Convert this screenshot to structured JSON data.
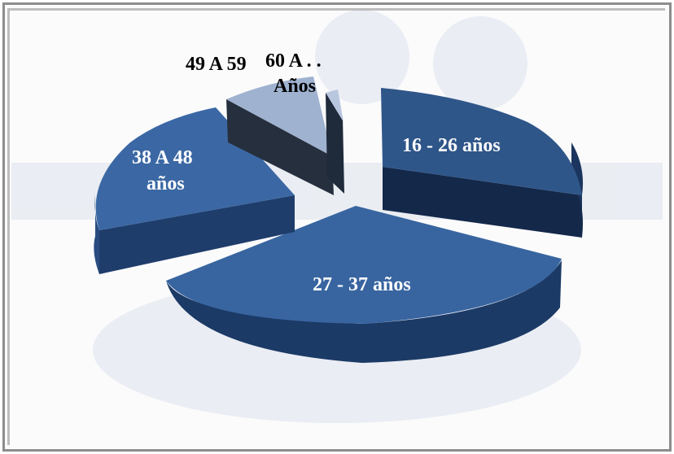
{
  "chart_data": {
    "type": "pie",
    "title": "",
    "slices": [
      {
        "label": "16 - 26 años",
        "value": 29,
        "color": "#2f5689"
      },
      {
        "label": "27 - 37 años",
        "value": 38,
        "color": "#3865a0"
      },
      {
        "label": "38 A 48 años",
        "value": 25,
        "color": "#3b68a4"
      },
      {
        "label": "49 A 59 Años",
        "value": 6,
        "color": "#9fb2d0"
      },
      {
        "label": "60 A . .",
        "value": 2,
        "color": "#b8c6de"
      }
    ],
    "label_colors": {
      "inside": "#ffffff",
      "outside": "#000000"
    }
  }
}
